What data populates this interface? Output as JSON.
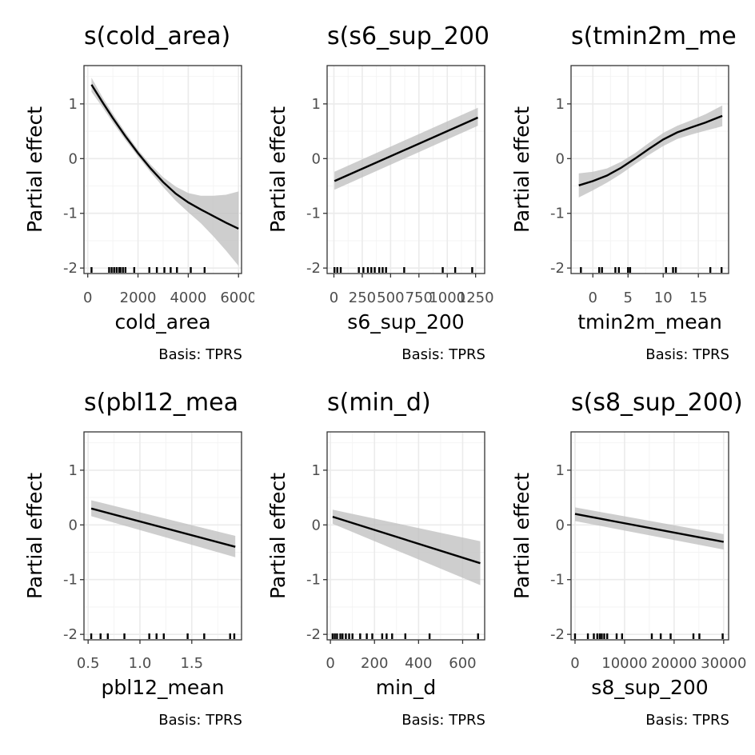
{
  "ylabel": "Partial effect",
  "caption": "Basis: TPRS",
  "chart_data": [
    {
      "type": "line",
      "title": "s(cold_area)",
      "xlabel": "cold_area",
      "xlim": [
        -150,
        6120
      ],
      "ylim": [
        -2.1,
        1.7
      ],
      "xticks": [
        0,
        2000,
        4000,
        6000
      ],
      "xtick_labels": [
        "0",
        "2000",
        "4000",
        "6000"
      ],
      "yticks": [
        -2,
        -1,
        0,
        1
      ],
      "ytick_labels": [
        "-2",
        "-1",
        "0",
        "1"
      ],
      "x": [
        150,
        600,
        1000,
        1500,
        2000,
        2500,
        3000,
        3500,
        4000,
        4500,
        5000,
        5500,
        6000
      ],
      "fit": [
        1.35,
        1.02,
        0.74,
        0.41,
        0.1,
        -0.18,
        -0.43,
        -0.64,
        -0.8,
        -0.93,
        -1.05,
        -1.17,
        -1.28
      ],
      "lower": [
        1.22,
        0.93,
        0.66,
        0.34,
        0.04,
        -0.25,
        -0.52,
        -0.77,
        -0.98,
        -1.18,
        -1.42,
        -1.68,
        -1.96
      ],
      "upper": [
        1.48,
        1.11,
        0.82,
        0.48,
        0.16,
        -0.11,
        -0.34,
        -0.51,
        -0.63,
        -0.68,
        -0.68,
        -0.66,
        -0.6
      ],
      "rug": [
        150,
        850,
        950,
        1050,
        1150,
        1250,
        1300,
        1400,
        1500,
        1850,
        2450,
        2750,
        3050,
        3300,
        3550,
        4100,
        4650
      ]
    },
    {
      "type": "line",
      "title": "s(s6_sup_200",
      "xlabel": "s6_sup_200",
      "xlim": [
        -60,
        1330
      ],
      "ylim": [
        -2.1,
        1.7
      ],
      "xticks": [
        0,
        250,
        500,
        750,
        1000,
        1250
      ],
      "xtick_labels": [
        "0",
        "250",
        "500",
        "750",
        "1000",
        "1250"
      ],
      "yticks": [
        -2,
        -1,
        0,
        1
      ],
      "ytick_labels": [
        "-2",
        "-1",
        "0",
        "1"
      ],
      "x": [
        5,
        1270
      ],
      "fit": [
        -0.41,
        0.75
      ],
      "lower": [
        -0.57,
        0.6
      ],
      "upper": [
        -0.24,
        0.93
      ],
      "rug": [
        5,
        30,
        60,
        220,
        260,
        300,
        330,
        360,
        400,
        430,
        460,
        620,
        960,
        1070,
        1220
      ]
    },
    {
      "type": "line",
      "title": "s(tmin2m_me",
      "xlabel": "tmin2m_mean",
      "xlim": [
        -3.1,
        19.3
      ],
      "ylim": [
        -2.1,
        1.7
      ],
      "xticks": [
        0,
        5,
        10,
        15
      ],
      "xtick_labels": [
        "0",
        "5",
        "10",
        "15"
      ],
      "yticks": [
        -2,
        -1,
        0,
        1
      ],
      "ytick_labels": [
        "-2",
        "-1",
        "0",
        "1"
      ],
      "x": [
        -2,
        0,
        2,
        4,
        6,
        8,
        10,
        12,
        14,
        16,
        18.4
      ],
      "fit": [
        -0.49,
        -0.41,
        -0.31,
        -0.17,
        0.0,
        0.18,
        0.35,
        0.48,
        0.57,
        0.66,
        0.78
      ],
      "lower": [
        -0.71,
        -0.58,
        -0.44,
        -0.28,
        -0.1,
        0.07,
        0.23,
        0.36,
        0.44,
        0.51,
        0.59
      ],
      "upper": [
        -0.27,
        -0.24,
        -0.18,
        -0.06,
        0.1,
        0.29,
        0.47,
        0.6,
        0.7,
        0.81,
        0.97
      ],
      "rug": [
        -1.7,
        0.9,
        1.3,
        3.2,
        3.7,
        5.0,
        5.3,
        10.4,
        11.4,
        11.8,
        16.7,
        18.3
      ]
    },
    {
      "type": "line",
      "title": "s(pbl12_mea",
      "xlabel": "pbl12_mean",
      "xlim": [
        0.46,
        1.98
      ],
      "ylim": [
        -2.1,
        1.7
      ],
      "xticks": [
        0.5,
        1.0,
        1.5
      ],
      "xtick_labels": [
        "0.5",
        "1.0",
        "1.5"
      ],
      "yticks": [
        -2,
        -1,
        0,
        1
      ],
      "ytick_labels": [
        "-2",
        "-1",
        "0",
        "1"
      ],
      "x": [
        0.53,
        1.92
      ],
      "fit": [
        0.3,
        -0.4
      ],
      "lower": [
        0.16,
        -0.59
      ],
      "upper": [
        0.45,
        -0.2
      ],
      "rug": [
        0.53,
        0.62,
        0.69,
        0.85,
        1.09,
        1.16,
        1.23,
        1.46,
        1.62,
        1.87,
        1.91
      ]
    },
    {
      "type": "line",
      "title": "s(min_d)",
      "xlabel": "min_d",
      "xlim": [
        -15,
        700
      ],
      "ylim": [
        -2.1,
        1.7
      ],
      "xticks": [
        0,
        200,
        400,
        600
      ],
      "xtick_labels": [
        "0",
        "200",
        "400",
        "600"
      ],
      "yticks": [
        -2,
        -1,
        0,
        1
      ],
      "ytick_labels": [
        "-2",
        "-1",
        "0",
        "1"
      ],
      "x": [
        10,
        680
      ],
      "fit": [
        0.15,
        -0.7
      ],
      "lower": [
        0.02,
        -1.1
      ],
      "upper": [
        0.28,
        -0.3
      ],
      "rug": [
        10,
        20,
        30,
        45,
        55,
        70,
        85,
        100,
        135,
        165,
        190,
        235,
        255,
        280,
        340,
        450,
        670
      ]
    },
    {
      "type": "line",
      "title": "s(s8_sup_200)",
      "xlabel": "s8_sup_200",
      "xlim": [
        -800,
        31000
      ],
      "ylim": [
        -2.1,
        1.7
      ],
      "xticks": [
        0,
        10000,
        20000,
        30000
      ],
      "xtick_labels": [
        "0",
        "10000",
        "20000",
        "30000"
      ],
      "yticks": [
        -2,
        -1,
        0,
        1
      ],
      "ytick_labels": [
        "-2",
        "-1",
        "0",
        "1"
      ],
      "x": [
        0,
        30000
      ],
      "fit": [
        0.2,
        -0.31
      ],
      "lower": [
        0.07,
        -0.45
      ],
      "upper": [
        0.32,
        -0.17
      ],
      "rug": [
        0,
        2600,
        3800,
        4500,
        5000,
        5400,
        5900,
        6500,
        8400,
        9500,
        15500,
        17300,
        19300,
        23900,
        25100,
        29800
      ]
    }
  ]
}
